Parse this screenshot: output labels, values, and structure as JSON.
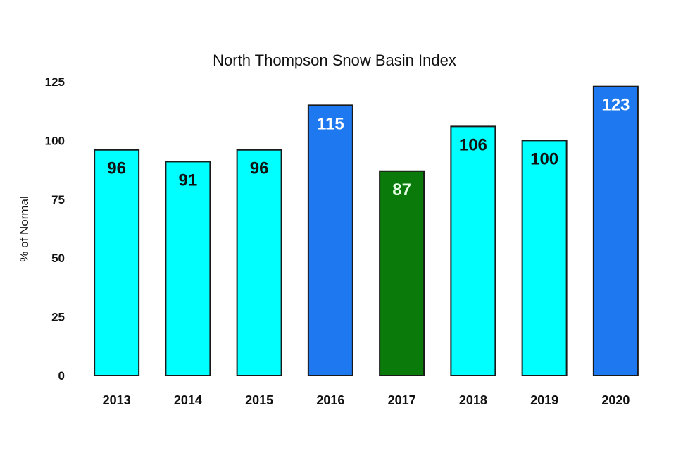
{
  "chart_data": {
    "type": "bar",
    "title": "North Thompson Snow Basin Index",
    "xlabel": "",
    "ylabel": "% of Normal",
    "ylim": [
      0,
      125
    ],
    "yticks": [
      0,
      25,
      50,
      75,
      100,
      125
    ],
    "grid": false,
    "legend": "none",
    "categories": [
      "2013",
      "2014",
      "2015",
      "2016",
      "2017",
      "2018",
      "2019",
      "2020"
    ],
    "values": [
      96,
      91,
      96,
      115,
      87,
      106,
      100,
      123
    ],
    "data_labels": [
      "96",
      "91",
      "96",
      "115",
      "87",
      "106",
      "100",
      "123"
    ],
    "bar_colors": [
      "#00ffff",
      "#00ffff",
      "#00ffff",
      "#1e78f0",
      "#0a7a0a",
      "#00ffff",
      "#00ffff",
      "#1e78f0"
    ],
    "label_colors": [
      "#111111",
      "#111111",
      "#111111",
      "#ffffff",
      "#e6ffe6",
      "#111111",
      "#111111",
      "#ffffff"
    ]
  }
}
